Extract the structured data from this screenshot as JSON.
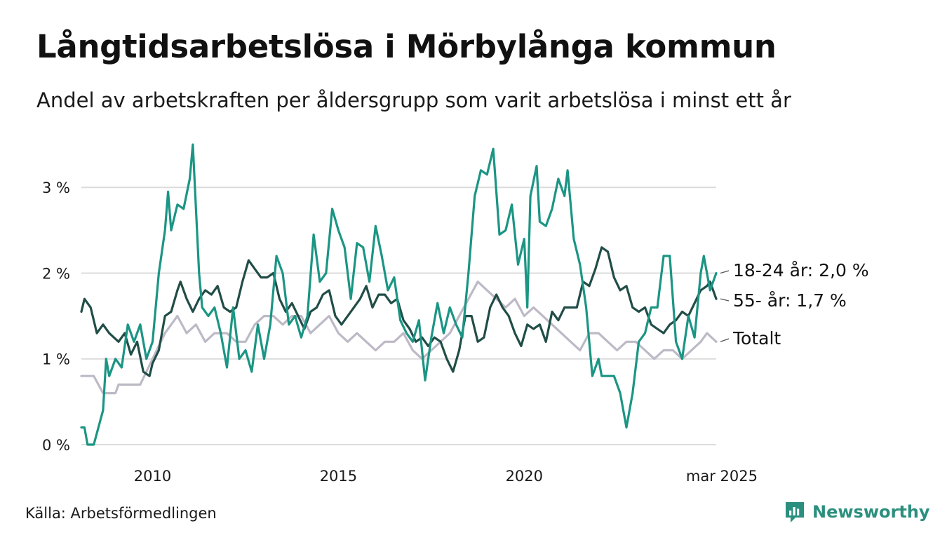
{
  "title": "Långtidsarbetslösa i Mörbylånga kommun",
  "subtitle": "Andel av arbetskraften per åldersgrupp som varit arbetslösa i minst ett år",
  "source": "Källa: Arbetsförmedlingen",
  "brand": "Newsworthy",
  "colors": {
    "youth": "#1b9584",
    "senior": "#214d47",
    "total": "#bdb9c6",
    "grid": "#dcdcdc",
    "brand": "#2b8f7e"
  },
  "chart_data": {
    "type": "line",
    "x_start": "2008-02",
    "x_end": "2025-03",
    "x_step": "month",
    "xticks": [
      {
        "date": "2010-01",
        "label": "2010"
      },
      {
        "date": "2015-01",
        "label": "2015"
      },
      {
        "date": "2020-01",
        "label": "2020"
      },
      {
        "date": "2025-03",
        "label": "mar 2025"
      }
    ],
    "yticks": [
      {
        "value": 0,
        "label": "0 %"
      },
      {
        "value": 1,
        "label": "1 %"
      },
      {
        "value": 2,
        "label": "2 %"
      },
      {
        "value": 3,
        "label": "3 %"
      }
    ],
    "ylim": [
      0,
      3.6
    ],
    "grid": true,
    "legend": "end-labels",
    "series": [
      {
        "key": "total",
        "label": "Totalt",
        "anchors": [
          [
            "2008-02",
            0.8
          ],
          [
            "2008-06",
            0.8
          ],
          [
            "2008-09",
            0.6
          ],
          [
            "2009-01",
            0.6
          ],
          [
            "2009-02",
            0.7
          ],
          [
            "2009-09",
            0.7
          ],
          [
            "2010-01",
            1.0
          ],
          [
            "2010-05",
            1.3
          ],
          [
            "2010-09",
            1.5
          ],
          [
            "2010-12",
            1.3
          ],
          [
            "2011-03",
            1.4
          ],
          [
            "2011-06",
            1.2
          ],
          [
            "2011-09",
            1.3
          ],
          [
            "2012-01",
            1.3
          ],
          [
            "2012-04",
            1.2
          ],
          [
            "2012-07",
            1.2
          ],
          [
            "2012-10",
            1.4
          ],
          [
            "2013-01",
            1.5
          ],
          [
            "2013-04",
            1.5
          ],
          [
            "2013-07",
            1.4
          ],
          [
            "2013-10",
            1.5
          ],
          [
            "2014-01",
            1.5
          ],
          [
            "2014-04",
            1.3
          ],
          [
            "2014-07",
            1.4
          ],
          [
            "2014-10",
            1.5
          ],
          [
            "2015-01",
            1.3
          ],
          [
            "2015-04",
            1.2
          ],
          [
            "2015-07",
            1.3
          ],
          [
            "2015-10",
            1.2
          ],
          [
            "2016-01",
            1.1
          ],
          [
            "2016-04",
            1.2
          ],
          [
            "2016-07",
            1.2
          ],
          [
            "2016-10",
            1.3
          ],
          [
            "2017-01",
            1.1
          ],
          [
            "2017-04",
            1.0
          ],
          [
            "2017-07",
            1.1
          ],
          [
            "2017-10",
            1.2
          ],
          [
            "2018-01",
            1.3
          ],
          [
            "2018-04",
            1.5
          ],
          [
            "2018-07",
            1.7
          ],
          [
            "2018-10",
            1.9
          ],
          [
            "2019-01",
            1.8
          ],
          [
            "2019-04",
            1.7
          ],
          [
            "2019-07",
            1.6
          ],
          [
            "2019-10",
            1.7
          ],
          [
            "2020-01",
            1.5
          ],
          [
            "2020-04",
            1.6
          ],
          [
            "2020-07",
            1.5
          ],
          [
            "2020-10",
            1.4
          ],
          [
            "2021-01",
            1.3
          ],
          [
            "2021-04",
            1.2
          ],
          [
            "2021-07",
            1.1
          ],
          [
            "2021-10",
            1.3
          ],
          [
            "2022-01",
            1.3
          ],
          [
            "2022-04",
            1.2
          ],
          [
            "2022-07",
            1.1
          ],
          [
            "2022-10",
            1.2
          ],
          [
            "2023-01",
            1.2
          ],
          [
            "2023-04",
            1.1
          ],
          [
            "2023-07",
            1.0
          ],
          [
            "2023-10",
            1.1
          ],
          [
            "2024-01",
            1.1
          ],
          [
            "2024-04",
            1.0
          ],
          [
            "2024-07",
            1.1
          ],
          [
            "2024-10",
            1.2
          ],
          [
            "2024-12",
            1.3
          ],
          [
            "2025-03",
            1.2
          ]
        ]
      },
      {
        "key": "senior",
        "label": "55- år: 1,7 %",
        "anchors": [
          [
            "2008-02",
            1.55
          ],
          [
            "2008-03",
            1.7
          ],
          [
            "2008-05",
            1.6
          ],
          [
            "2008-07",
            1.3
          ],
          [
            "2008-09",
            1.4
          ],
          [
            "2008-11",
            1.3
          ],
          [
            "2009-02",
            1.2
          ],
          [
            "2009-04",
            1.3
          ],
          [
            "2009-06",
            1.05
          ],
          [
            "2009-08",
            1.2
          ],
          [
            "2009-10",
            0.85
          ],
          [
            "2009-12",
            0.8
          ],
          [
            "2010-01",
            0.95
          ],
          [
            "2010-03",
            1.1
          ],
          [
            "2010-05",
            1.5
          ],
          [
            "2010-07",
            1.55
          ],
          [
            "2010-09",
            1.8
          ],
          [
            "2010-10",
            1.9
          ],
          [
            "2010-12",
            1.7
          ],
          [
            "2011-02",
            1.55
          ],
          [
            "2011-04",
            1.7
          ],
          [
            "2011-06",
            1.8
          ],
          [
            "2011-08",
            1.75
          ],
          [
            "2011-10",
            1.85
          ],
          [
            "2011-12",
            1.6
          ],
          [
            "2012-02",
            1.55
          ],
          [
            "2012-04",
            1.6
          ],
          [
            "2012-06",
            1.9
          ],
          [
            "2012-08",
            2.15
          ],
          [
            "2012-10",
            2.05
          ],
          [
            "2012-12",
            1.95
          ],
          [
            "2013-02",
            1.95
          ],
          [
            "2013-04",
            2.0
          ],
          [
            "2013-06",
            1.7
          ],
          [
            "2013-08",
            1.55
          ],
          [
            "2013-10",
            1.65
          ],
          [
            "2013-12",
            1.5
          ],
          [
            "2014-02",
            1.35
          ],
          [
            "2014-04",
            1.55
          ],
          [
            "2014-06",
            1.6
          ],
          [
            "2014-08",
            1.75
          ],
          [
            "2014-10",
            1.8
          ],
          [
            "2014-12",
            1.5
          ],
          [
            "2015-02",
            1.4
          ],
          [
            "2015-04",
            1.5
          ],
          [
            "2015-06",
            1.6
          ],
          [
            "2015-08",
            1.7
          ],
          [
            "2015-10",
            1.85
          ],
          [
            "2015-12",
            1.6
          ],
          [
            "2016-02",
            1.75
          ],
          [
            "2016-04",
            1.75
          ],
          [
            "2016-06",
            1.65
          ],
          [
            "2016-08",
            1.7
          ],
          [
            "2016-10",
            1.45
          ],
          [
            "2016-12",
            1.35
          ],
          [
            "2017-02",
            1.2
          ],
          [
            "2017-04",
            1.25
          ],
          [
            "2017-06",
            1.15
          ],
          [
            "2017-08",
            1.25
          ],
          [
            "2017-10",
            1.2
          ],
          [
            "2017-12",
            1.0
          ],
          [
            "2018-02",
            0.85
          ],
          [
            "2018-04",
            1.1
          ],
          [
            "2018-06",
            1.5
          ],
          [
            "2018-08",
            1.5
          ],
          [
            "2018-10",
            1.2
          ],
          [
            "2018-12",
            1.25
          ],
          [
            "2019-02",
            1.6
          ],
          [
            "2019-04",
            1.75
          ],
          [
            "2019-06",
            1.6
          ],
          [
            "2019-08",
            1.5
          ],
          [
            "2019-10",
            1.3
          ],
          [
            "2019-12",
            1.15
          ],
          [
            "2020-02",
            1.4
          ],
          [
            "2020-04",
            1.35
          ],
          [
            "2020-06",
            1.4
          ],
          [
            "2020-08",
            1.2
          ],
          [
            "2020-10",
            1.55
          ],
          [
            "2020-12",
            1.45
          ],
          [
            "2021-02",
            1.6
          ],
          [
            "2021-04",
            1.6
          ],
          [
            "2021-06",
            1.6
          ],
          [
            "2021-08",
            1.9
          ],
          [
            "2021-10",
            1.85
          ],
          [
            "2021-12",
            2.05
          ],
          [
            "2022-02",
            2.3
          ],
          [
            "2022-04",
            2.25
          ],
          [
            "2022-06",
            1.95
          ],
          [
            "2022-08",
            1.8
          ],
          [
            "2022-10",
            1.85
          ],
          [
            "2022-12",
            1.6
          ],
          [
            "2023-02",
            1.55
          ],
          [
            "2023-04",
            1.6
          ],
          [
            "2023-06",
            1.4
          ],
          [
            "2023-08",
            1.35
          ],
          [
            "2023-10",
            1.3
          ],
          [
            "2023-12",
            1.4
          ],
          [
            "2024-02",
            1.45
          ],
          [
            "2024-04",
            1.55
          ],
          [
            "2024-06",
            1.5
          ],
          [
            "2024-08",
            1.65
          ],
          [
            "2024-10",
            1.8
          ],
          [
            "2024-12",
            1.85
          ],
          [
            "2025-01",
            1.9
          ],
          [
            "2025-02",
            1.8
          ],
          [
            "2025-03",
            1.7
          ]
        ]
      },
      {
        "key": "youth",
        "label": "18-24 år: 2,0 %",
        "anchors": [
          [
            "2008-02",
            0.2
          ],
          [
            "2008-03",
            0.2
          ],
          [
            "2008-04",
            0.0
          ],
          [
            "2008-06",
            0.0
          ],
          [
            "2008-09",
            0.4
          ],
          [
            "2008-10",
            1.0
          ],
          [
            "2008-11",
            0.8
          ],
          [
            "2009-01",
            1.0
          ],
          [
            "2009-03",
            0.9
          ],
          [
            "2009-05",
            1.4
          ],
          [
            "2009-07",
            1.2
          ],
          [
            "2009-09",
            1.4
          ],
          [
            "2009-11",
            1.0
          ],
          [
            "2010-01",
            1.2
          ],
          [
            "2010-03",
            2.0
          ],
          [
            "2010-05",
            2.5
          ],
          [
            "2010-06",
            2.95
          ],
          [
            "2010-07",
            2.5
          ],
          [
            "2010-09",
            2.8
          ],
          [
            "2010-11",
            2.75
          ],
          [
            "2011-01",
            3.1
          ],
          [
            "2011-02",
            3.5
          ],
          [
            "2011-04",
            2.0
          ],
          [
            "2011-05",
            1.6
          ],
          [
            "2011-07",
            1.5
          ],
          [
            "2011-09",
            1.6
          ],
          [
            "2011-11",
            1.3
          ],
          [
            "2012-01",
            0.9
          ],
          [
            "2012-03",
            1.6
          ],
          [
            "2012-05",
            1.0
          ],
          [
            "2012-07",
            1.1
          ],
          [
            "2012-09",
            0.85
          ],
          [
            "2012-11",
            1.4
          ],
          [
            "2013-01",
            1.0
          ],
          [
            "2013-03",
            1.4
          ],
          [
            "2013-05",
            2.2
          ],
          [
            "2013-07",
            2.0
          ],
          [
            "2013-09",
            1.4
          ],
          [
            "2013-11",
            1.5
          ],
          [
            "2014-01",
            1.25
          ],
          [
            "2014-03",
            1.5
          ],
          [
            "2014-05",
            2.45
          ],
          [
            "2014-07",
            1.9
          ],
          [
            "2014-09",
            2.0
          ],
          [
            "2014-11",
            2.75
          ],
          [
            "2015-01",
            2.5
          ],
          [
            "2015-03",
            2.3
          ],
          [
            "2015-05",
            1.7
          ],
          [
            "2015-07",
            2.35
          ],
          [
            "2015-09",
            2.3
          ],
          [
            "2015-11",
            1.9
          ],
          [
            "2016-01",
            2.55
          ],
          [
            "2016-03",
            2.2
          ],
          [
            "2016-05",
            1.8
          ],
          [
            "2016-07",
            1.95
          ],
          [
            "2016-09",
            1.45
          ],
          [
            "2016-11",
            1.3
          ],
          [
            "2017-01",
            1.2
          ],
          [
            "2017-03",
            1.45
          ],
          [
            "2017-05",
            0.75
          ],
          [
            "2017-07",
            1.25
          ],
          [
            "2017-09",
            1.65
          ],
          [
            "2017-11",
            1.3
          ],
          [
            "2018-01",
            1.6
          ],
          [
            "2018-03",
            1.4
          ],
          [
            "2018-05",
            1.25
          ],
          [
            "2018-07",
            2.0
          ],
          [
            "2018-09",
            2.9
          ],
          [
            "2018-11",
            3.2
          ],
          [
            "2019-01",
            3.15
          ],
          [
            "2019-03",
            3.45
          ],
          [
            "2019-05",
            2.45
          ],
          [
            "2019-07",
            2.5
          ],
          [
            "2019-09",
            2.8
          ],
          [
            "2019-11",
            2.1
          ],
          [
            "2020-01",
            2.4
          ],
          [
            "2020-02",
            1.6
          ],
          [
            "2020-03",
            2.9
          ],
          [
            "2020-05",
            3.25
          ],
          [
            "2020-06",
            2.6
          ],
          [
            "2020-08",
            2.55
          ],
          [
            "2020-10",
            2.75
          ],
          [
            "2020-12",
            3.1
          ],
          [
            "2021-02",
            2.9
          ],
          [
            "2021-03",
            3.2
          ],
          [
            "2021-05",
            2.4
          ],
          [
            "2021-07",
            2.1
          ],
          [
            "2021-09",
            1.6
          ],
          [
            "2021-11",
            0.8
          ],
          [
            "2022-01",
            1.0
          ],
          [
            "2022-02",
            0.8
          ],
          [
            "2022-06",
            0.8
          ],
          [
            "2022-08",
            0.6
          ],
          [
            "2022-10",
            0.2
          ],
          [
            "2022-12",
            0.6
          ],
          [
            "2023-02",
            1.2
          ],
          [
            "2023-04",
            1.3
          ],
          [
            "2023-06",
            1.6
          ],
          [
            "2023-08",
            1.6
          ],
          [
            "2023-10",
            2.2
          ],
          [
            "2023-12",
            2.2
          ],
          [
            "2024-02",
            1.2
          ],
          [
            "2024-04",
            1.0
          ],
          [
            "2024-06",
            1.5
          ],
          [
            "2024-08",
            1.25
          ],
          [
            "2024-10",
            2.0
          ],
          [
            "2024-11",
            2.2
          ],
          [
            "2025-01",
            1.8
          ],
          [
            "2025-03",
            2.0
          ]
        ]
      }
    ]
  }
}
